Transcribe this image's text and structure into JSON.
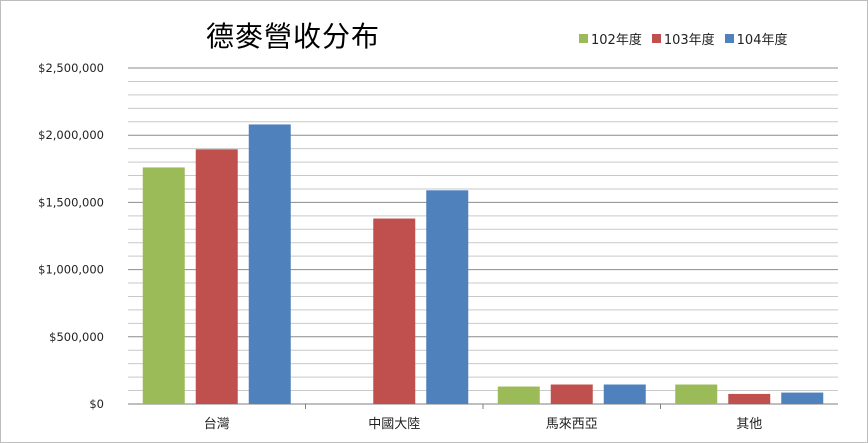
{
  "chart_data": {
    "type": "bar",
    "title": "德麥營收分布",
    "categories": [
      "台灣",
      "中國大陸",
      "馬來西亞",
      "其他"
    ],
    "series": [
      {
        "name": "102年度",
        "color": "#9bbb59",
        "values": [
          1760000,
          null,
          130000,
          145000
        ]
      },
      {
        "name": "103年度",
        "color": "#c0504d",
        "values": [
          1895000,
          1380000,
          145000,
          75000
        ]
      },
      {
        "name": "104年度",
        "color": "#4f81bd",
        "values": [
          2080000,
          1590000,
          145000,
          85000
        ]
      }
    ],
    "ylim": [
      0,
      2500000
    ],
    "yticks": [
      0,
      500000,
      1000000,
      1500000,
      2000000,
      2500000
    ],
    "ytick_labels": [
      "$0",
      "$500,000",
      "$1,000,000",
      "$1,500,000",
      "$2,000,000",
      "$2,500,000"
    ],
    "minor_gridline_step": 100000,
    "grid": true,
    "legend_position": "top-right"
  }
}
